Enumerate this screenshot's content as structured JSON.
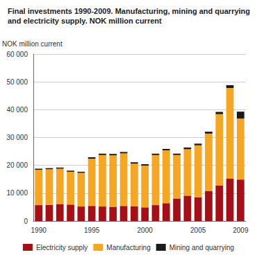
{
  "chart_data": {
    "type": "bar",
    "title": "Final investments 1990-2009. Manufacturing, mining and quarrying and electricity supply. NOK million current",
    "y_label": "NOK million current",
    "categories": [
      "1990",
      null,
      null,
      null,
      null,
      "1995",
      null,
      null,
      null,
      null,
      "2000",
      null,
      null,
      null,
      null,
      "2005",
      null,
      null,
      null,
      "2009"
    ],
    "series": [
      {
        "name": "Electricity supply",
        "color": "#a50f15",
        "values": [
          5700,
          5800,
          6100,
          5900,
          5200,
          5400,
          5200,
          5100,
          5400,
          5300,
          4900,
          5700,
          6400,
          8100,
          9100,
          8500,
          10800,
          12700,
          15200,
          14900
        ]
      },
      {
        "name": "Manufacturing",
        "color": "#f5a623",
        "values": [
          12700,
          12800,
          12700,
          11800,
          12100,
          17000,
          18500,
          18500,
          18900,
          15300,
          15000,
          18000,
          19000,
          15600,
          16700,
          18700,
          20600,
          25700,
          32600,
          21900
        ]
      },
      {
        "name": "Mining and quarrying",
        "color": "#1a1a1a",
        "values": [
          400,
          400,
          400,
          400,
          400,
          500,
          500,
          500,
          500,
          500,
          500,
          500,
          500,
          500,
          600,
          600,
          700,
          800,
          1000,
          2500
        ]
      }
    ],
    "stacked": true,
    "ylim": [
      0,
      60000
    ],
    "yticks": [
      0,
      {
        "value": 10000,
        "label": "10 000"
      },
      {
        "value": 20000,
        "label": "20 000"
      },
      {
        "value": 30000,
        "label": "30 000"
      },
      {
        "value": 40000,
        "label": "40 000"
      },
      {
        "value": 50000,
        "label": "50 000"
      },
      {
        "value": 60000,
        "label": "60 000"
      }
    ],
    "grid": true,
    "legend": "bottom"
  }
}
